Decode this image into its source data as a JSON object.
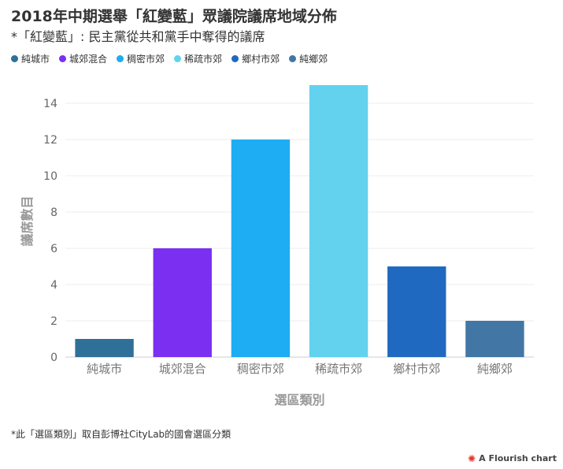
{
  "title": "2018年中期選舉「紅變藍」眾議院議席地域分佈",
  "subtitle": "*「紅變藍」: 民主黨從共和黨手中奪得的議席",
  "footnote": "*此「選區類別」取自彭博社CityLab的國會選區分類",
  "credit": "A Flourish chart",
  "icons": {
    "credit_logo": "flourish-logo-icon"
  },
  "chart_data": {
    "type": "bar",
    "categories": [
      "純城市",
      "城郊混合",
      "稠密市郊",
      "稀疏市郊",
      "鄉村市郊",
      "純鄉郊"
    ],
    "values": [
      1,
      6,
      12,
      15,
      5,
      2
    ],
    "colors": [
      "#2f7098",
      "#7b2ff0",
      "#1eacf2",
      "#62d2ef",
      "#1f6ac0",
      "#4277a5"
    ],
    "xlabel": "選區類別",
    "ylabel": "議席數目",
    "ylim": [
      0,
      15
    ],
    "yticks": [
      0,
      2,
      4,
      6,
      8,
      10,
      12,
      14
    ],
    "grid": true,
    "legend": "top-left"
  }
}
